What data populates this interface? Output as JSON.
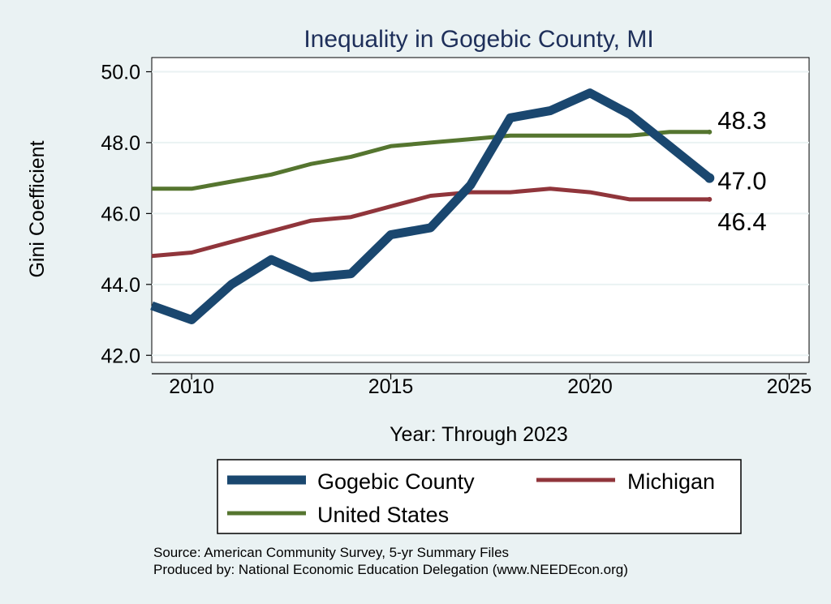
{
  "chart_data": {
    "type": "line",
    "title": "Inequality in Gogebic County, MI",
    "xlabel": "Year: Through 2023",
    "ylabel": "Gini Coefficient",
    "xlim": [
      2009,
      2025.5
    ],
    "ylim": [
      41.8,
      50.4
    ],
    "xticks": [
      2010,
      2015,
      2020,
      2025
    ],
    "yticks": [
      42,
      44,
      46,
      48,
      50
    ],
    "ytick_labels": [
      "42.0",
      "44.0",
      "46.0",
      "48.0",
      "50.0"
    ],
    "x": [
      2009,
      2010,
      2011,
      2012,
      2013,
      2014,
      2015,
      2016,
      2017,
      2018,
      2019,
      2020,
      2021,
      2022,
      2023
    ],
    "series": [
      {
        "name": "Gogebic County",
        "color": "#1a476f",
        "values": [
          43.4,
          43.0,
          44.0,
          44.7,
          44.2,
          44.3,
          45.4,
          45.6,
          46.8,
          48.7,
          48.9,
          49.4,
          48.8,
          47.9,
          47.0
        ],
        "end_label": "47.0"
      },
      {
        "name": "Michigan",
        "color": "#90353b",
        "values": [
          44.8,
          44.9,
          45.2,
          45.5,
          45.8,
          45.9,
          46.2,
          46.5,
          46.6,
          46.6,
          46.7,
          46.6,
          46.4,
          46.4,
          46.4
        ],
        "end_label": "46.4"
      },
      {
        "name": "United States",
        "color": "#55752f",
        "values": [
          46.7,
          46.7,
          46.9,
          47.1,
          47.4,
          47.6,
          47.9,
          48.0,
          48.1,
          48.2,
          48.2,
          48.2,
          48.2,
          48.3,
          48.3
        ],
        "end_label": "48.3"
      }
    ],
    "legend": {
      "placement": "bottom",
      "entries": [
        "Gogebic County",
        "Michigan",
        "United States"
      ]
    },
    "source_lines": [
      "Source: American Community Survey, 5-yr Summary Files",
      "Produced by: National Economic Education Delegation (www.NEEDEcon.org)"
    ]
  }
}
